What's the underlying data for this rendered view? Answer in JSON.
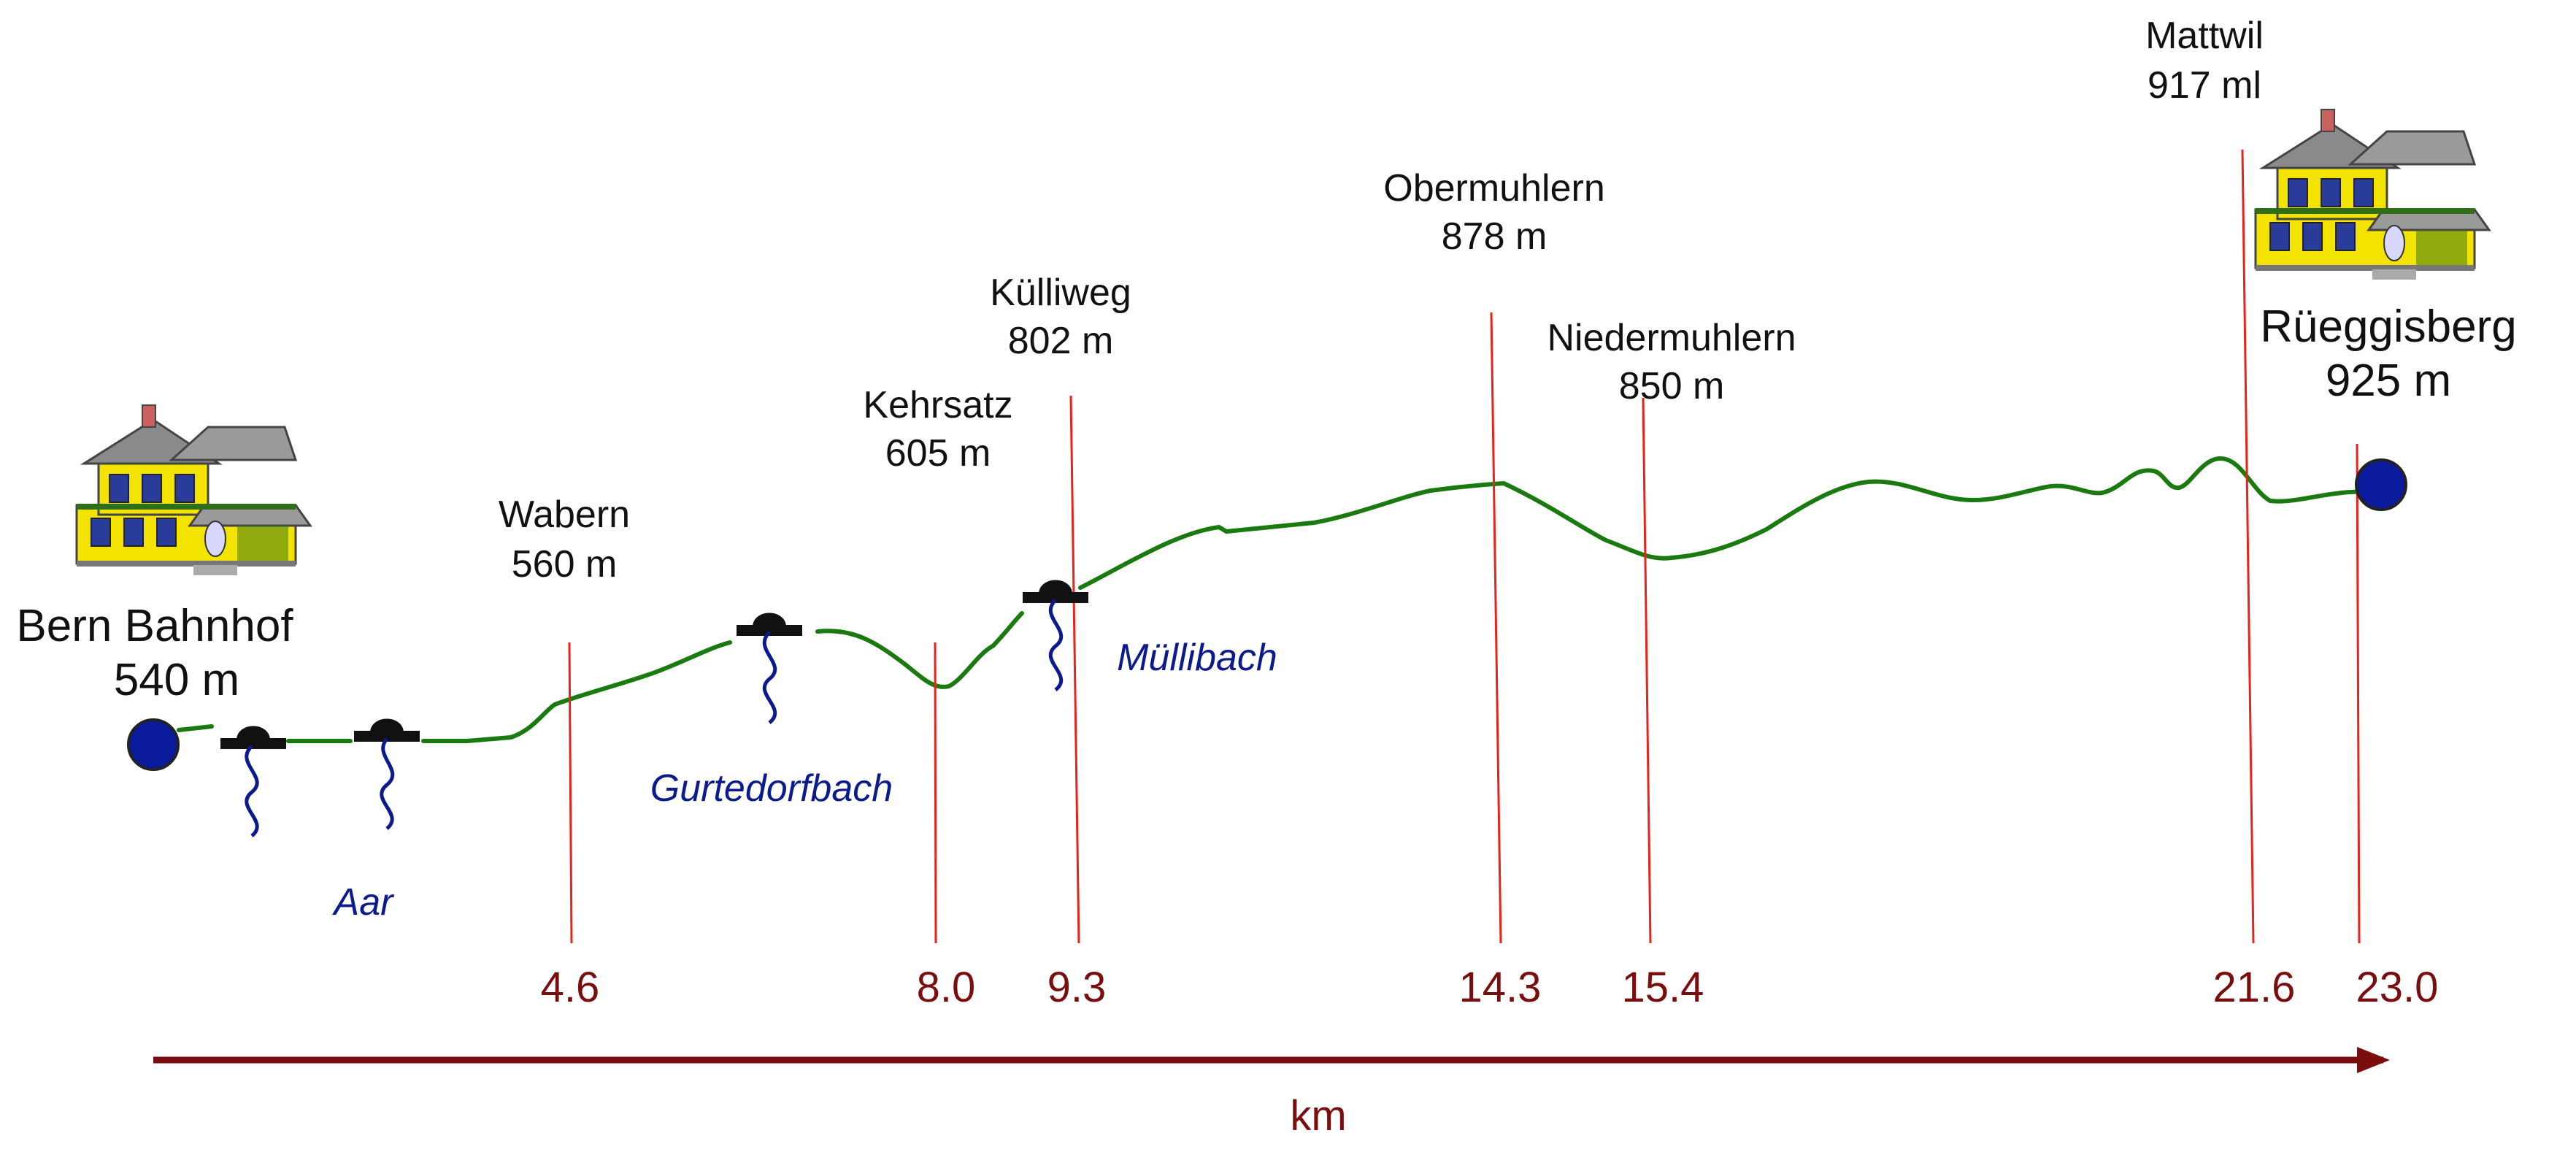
{
  "colors": {
    "route": "#1a7a10",
    "marker": "#e8231a",
    "axis": "#7a0e0e",
    "river": "#0b1a8c",
    "stop": "#0a1a9c",
    "bridge": "#111111",
    "house_wall": "#f2e400",
    "house_roof": "#8a8a8a",
    "house_trim": "#2f6f1a"
  },
  "start": {
    "name": "Bern Bahnhof",
    "elevation": "540 m",
    "icon": "house-icon"
  },
  "end": {
    "name": "Rüeggisberg",
    "elevation": "925 m",
    "icon": "house-icon"
  },
  "places": [
    {
      "id": "wabern",
      "name": "Wabern",
      "elevation": "560 m",
      "km": "4.6"
    },
    {
      "id": "kehrsatz",
      "name": "Kehrsatz",
      "elevation": "605 m",
      "km": "8.0"
    },
    {
      "id": "kulliweg",
      "name": "Külliweg",
      "elevation": "802 m",
      "km": "9.3"
    },
    {
      "id": "obermuhlern",
      "name": "Obermuhlern",
      "elevation": "878 m",
      "km": "14.3"
    },
    {
      "id": "niedermuhlern",
      "name": "Niedermuhlern",
      "elevation": "850 m",
      "km": "15.4"
    },
    {
      "id": "mattwil",
      "name": "Mattwil",
      "elevation": "917 ml",
      "km": "21.6"
    },
    {
      "id": "rueggisberg",
      "km": "23.0"
    }
  ],
  "rivers": [
    {
      "name": "Aar",
      "icon": "bridge-icon"
    },
    {
      "name": "Gurtedorfbach",
      "icon": "bridge-icon"
    },
    {
      "name": "Müllibach",
      "icon": "bridge-icon"
    }
  ],
  "axis": {
    "label": "km"
  }
}
